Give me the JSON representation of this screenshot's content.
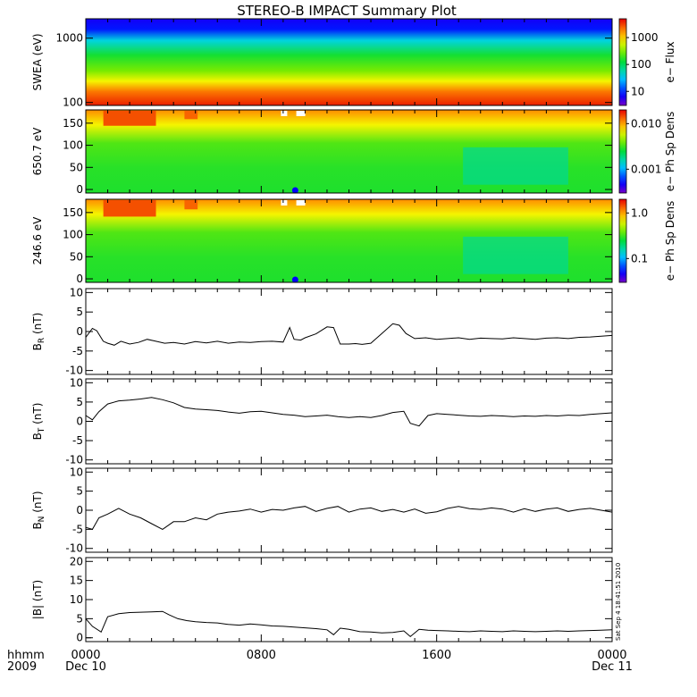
{
  "title": "STEREO-B IMPACT Summary Plot",
  "stamp": "Sat Sep  4 18:41:51 2010",
  "time_axis": {
    "row1_label": "hhmm",
    "row2_label": "2009",
    "ticks": [
      {
        "hour": 0,
        "label": "0000",
        "sub": "Dec 10"
      },
      {
        "hour": 8,
        "label": "0800",
        "sub": ""
      },
      {
        "hour": 16,
        "label": "1600",
        "sub": ""
      },
      {
        "hour": 24,
        "label": "0000",
        "sub": "Dec 11"
      }
    ]
  },
  "chart_data": [
    {
      "type": "heatmap",
      "ylabel": "SWEA (eV)",
      "yscale": "log",
      "ylim": [
        90,
        2000
      ],
      "yticks": [
        100,
        1000
      ],
      "ytick_labels": [
        "100",
        "1000"
      ],
      "x_range_hours": [
        0,
        24
      ],
      "colorbar": {
        "label": "e− Flux",
        "scale": "log",
        "range": [
          3,
          5000
        ],
        "ticks": [
          10,
          100,
          1000
        ],
        "tick_labels": [
          "10",
          "100",
          "1000"
        ]
      },
      "description_values": {
        "low_energy_level": 5000,
        "high_energy_level": 3
      }
    },
    {
      "type": "heatmap",
      "ylabel": "650.7 eV",
      "ylim": [
        -8,
        180
      ],
      "yticks": [
        0,
        50,
        100,
        150
      ],
      "x_range_hours": [
        0,
        24
      ],
      "colorbar": {
        "label": "e− Ph Sp Dens",
        "scale": "log",
        "range": [
          0.0003,
          0.02
        ],
        "ticks": [
          0.001,
          0.01
        ],
        "tick_labels": [
          "0.001",
          "0.010"
        ]
      }
    },
    {
      "type": "heatmap",
      "ylabel": "246.6 eV",
      "ylim": [
        -8,
        180
      ],
      "yticks": [
        0,
        50,
        100,
        150
      ],
      "x_range_hours": [
        0,
        24
      ],
      "colorbar": {
        "label": "e− Ph Sp Dens",
        "scale": "log",
        "range": [
          0.03,
          2.0
        ],
        "ticks": [
          0.1,
          1.0
        ],
        "tick_labels": [
          "0.1",
          "1.0"
        ]
      }
    },
    {
      "type": "line",
      "ylabel_main": "B",
      "ylabel_sub": "R",
      "ylabel_unit": " (nT)",
      "ylim": [
        -11,
        11
      ],
      "yticks": [
        -10,
        -5,
        0,
        5,
        10
      ],
      "x": [
        0,
        0.3,
        0.5,
        0.8,
        1.0,
        1.3,
        1.6,
        2.0,
        2.4,
        2.8,
        3.2,
        3.6,
        4.0,
        4.5,
        5.0,
        5.5,
        6.0,
        6.5,
        7.0,
        7.5,
        8.0,
        8.5,
        9.0,
        9.3,
        9.5,
        9.8,
        10.0,
        10.5,
        11.0,
        11.3,
        11.6,
        12.0,
        12.3,
        12.6,
        13.0,
        13.5,
        14.0,
        14.3,
        14.6,
        15.0,
        15.5,
        16.0,
        16.5,
        17.0,
        17.5,
        18.0,
        18.5,
        19.0,
        19.5,
        20.0,
        20.5,
        21.0,
        21.5,
        22.0,
        22.5,
        23.0,
        23.5,
        24.0
      ],
      "y": [
        -1.5,
        0.8,
        0.2,
        -2.5,
        -3.0,
        -3.5,
        -2.5,
        -3.2,
        -2.8,
        -2.0,
        -2.5,
        -3.0,
        -2.8,
        -3.2,
        -2.6,
        -2.9,
        -2.5,
        -3.0,
        -2.7,
        -2.8,
        -2.6,
        -2.5,
        -2.7,
        1.0,
        -2.0,
        -2.2,
        -1.6,
        -0.6,
        1.2,
        1.0,
        -3.2,
        -3.2,
        -3.1,
        -3.3,
        -3.0,
        -0.5,
        2.0,
        1.6,
        -0.5,
        -1.8,
        -1.6,
        -2.0,
        -1.8,
        -1.6,
        -2.0,
        -1.7,
        -1.8,
        -1.9,
        -1.6,
        -1.8,
        -2.0,
        -1.7,
        -1.6,
        -1.8,
        -1.5,
        -1.4,
        -1.2,
        -1.0
      ]
    },
    {
      "type": "line",
      "ylabel_main": "B",
      "ylabel_sub": "T",
      "ylabel_unit": " (nT)",
      "ylim": [
        -11,
        11
      ],
      "yticks": [
        -10,
        -5,
        0,
        5,
        10
      ],
      "x": [
        0,
        0.3,
        0.6,
        1.0,
        1.5,
        2.0,
        2.5,
        3.0,
        3.5,
        4.0,
        4.5,
        5.0,
        5.5,
        6.0,
        6.5,
        7.0,
        7.5,
        8.0,
        8.5,
        9.0,
        9.5,
        10.0,
        10.5,
        11.0,
        11.5,
        12.0,
        12.5,
        13.0,
        13.5,
        14.0,
        14.5,
        14.8,
        15.2,
        15.6,
        16.0,
        16.5,
        17.0,
        17.5,
        18.0,
        18.5,
        19.0,
        19.5,
        20.0,
        20.5,
        21.0,
        21.5,
        22.0,
        22.5,
        23.0,
        23.5,
        24.0
      ],
      "y": [
        1.5,
        0.4,
        2.5,
        4.5,
        5.3,
        5.5,
        5.8,
        6.2,
        5.6,
        4.8,
        3.6,
        3.2,
        3.0,
        2.8,
        2.4,
        2.1,
        2.5,
        2.6,
        2.2,
        1.8,
        1.6,
        1.2,
        1.4,
        1.6,
        1.2,
        1.0,
        1.2,
        1.0,
        1.5,
        2.3,
        2.6,
        -0.5,
        -1.2,
        1.5,
        2.0,
        1.8,
        1.6,
        1.4,
        1.3,
        1.5,
        1.4,
        1.2,
        1.4,
        1.3,
        1.5,
        1.4,
        1.6,
        1.5,
        1.8,
        2.0,
        2.2
      ]
    },
    {
      "type": "line",
      "ylabel_main": "B",
      "ylabel_sub": "N",
      "ylabel_unit": " (nT)",
      "ylim": [
        -11,
        11
      ],
      "yticks": [
        -10,
        -5,
        0,
        5,
        10
      ],
      "x": [
        0,
        0.3,
        0.6,
        1.0,
        1.5,
        2.0,
        2.5,
        3.0,
        3.5,
        4.0,
        4.5,
        5.0,
        5.5,
        6.0,
        6.5,
        7.0,
        7.5,
        8.0,
        8.5,
        9.0,
        9.5,
        10.0,
        10.5,
        11.0,
        11.5,
        12.0,
        12.5,
        13.0,
        13.5,
        14.0,
        14.5,
        15.0,
        15.5,
        16.0,
        16.5,
        17.0,
        17.5,
        18.0,
        18.5,
        19.0,
        19.5,
        20.0,
        20.5,
        21.0,
        21.5,
        22.0,
        22.5,
        23.0,
        23.5,
        24.0
      ],
      "y": [
        -4.5,
        -5.0,
        -2.0,
        -1.0,
        0.5,
        -1.0,
        -2.0,
        -3.5,
        -5.0,
        -3.0,
        -3.0,
        -2.0,
        -2.5,
        -1.0,
        -0.5,
        -0.2,
        0.3,
        -0.5,
        0.2,
        0.0,
        0.6,
        1.0,
        -0.3,
        0.5,
        1.0,
        -0.5,
        0.3,
        0.6,
        -0.3,
        0.2,
        -0.5,
        0.3,
        -0.8,
        -0.4,
        0.5,
        1.0,
        0.4,
        0.2,
        0.6,
        0.3,
        -0.5,
        0.4,
        -0.3,
        0.3,
        0.6,
        -0.3,
        0.2,
        0.5,
        0.0,
        -0.5
      ]
    },
    {
      "type": "line",
      "ylabel_main": "|B|",
      "ylabel_sub": "",
      "ylabel_unit": " (nT)",
      "ylim": [
        -1,
        21
      ],
      "yticks": [
        0,
        5,
        10,
        15,
        20
      ],
      "x": [
        0,
        0.3,
        0.7,
        1.0,
        1.5,
        2.0,
        2.5,
        3.0,
        3.5,
        3.8,
        4.2,
        4.6,
        5.0,
        5.5,
        6.0,
        6.5,
        7.0,
        7.5,
        8.0,
        8.5,
        9.0,
        9.5,
        10.0,
        10.5,
        11.0,
        11.3,
        11.6,
        12.0,
        12.5,
        13.0,
        13.5,
        14.0,
        14.5,
        14.8,
        15.2,
        15.6,
        16.0,
        16.5,
        17.0,
        17.5,
        18.0,
        18.5,
        19.0,
        19.5,
        20.0,
        20.5,
        21.0,
        21.5,
        22.0,
        22.5,
        23.0,
        23.5,
        24.0
      ],
      "y": [
        5.0,
        3.0,
        1.5,
        5.5,
        6.3,
        6.6,
        6.7,
        6.8,
        6.9,
        6.0,
        5.0,
        4.5,
        4.2,
        4.0,
        3.9,
        3.5,
        3.3,
        3.6,
        3.4,
        3.1,
        3.0,
        2.8,
        2.6,
        2.4,
        2.1,
        0.8,
        2.5,
        2.2,
        1.6,
        1.5,
        1.3,
        1.4,
        1.8,
        0.3,
        2.2,
        2.0,
        1.9,
        1.8,
        1.7,
        1.6,
        1.8,
        1.7,
        1.6,
        1.8,
        1.7,
        1.6,
        1.7,
        1.8,
        1.7,
        1.8,
        1.9,
        2.0,
        2.1
      ]
    }
  ]
}
